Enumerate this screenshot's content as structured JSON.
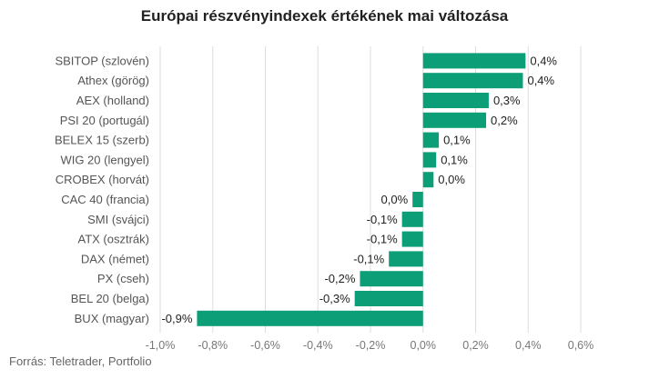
{
  "chart_data": {
    "type": "bar",
    "orientation": "horizontal",
    "title": "Európai részvényindexek értékének mai változása",
    "categories": [
      "SBITOP (szlovén)",
      "Athex (görög)",
      "AEX (holland)",
      "PSI 20 (portugál)",
      "BELEX 15 (szerb)",
      "WIG 20 (lengyel)",
      "CROBEX (horvát)",
      "CAC 40 (francia)",
      "SMI (svájci)",
      "ATX (osztrák)",
      "DAX (német)",
      "PX (cseh)",
      "BEL 20 (belga)",
      "BUX (magyar)"
    ],
    "values": [
      0.39,
      0.38,
      0.25,
      0.24,
      0.06,
      0.05,
      0.04,
      -0.04,
      -0.08,
      -0.08,
      -0.13,
      -0.24,
      -0.26,
      -0.86
    ],
    "value_labels": [
      "0,4%",
      "0,4%",
      "0,3%",
      "0,2%",
      "0,1%",
      "0,1%",
      "0,0%",
      "0,0%",
      "-0,1%",
      "-0,1%",
      "-0,1%",
      "-0,2%",
      "-0,3%",
      "-0,9%"
    ],
    "xlim": [
      -1.0,
      0.6
    ],
    "xticks": [
      -1.0,
      -0.8,
      -0.6,
      -0.4,
      -0.2,
      0.0,
      0.2,
      0.4,
      0.6
    ],
    "xtick_labels": [
      "-1,0%",
      "-0,8%",
      "-0,6%",
      "-0,4%",
      "-0,2%",
      "0,0%",
      "0,2%",
      "0,4%",
      "0,6%"
    ],
    "grid": true,
    "bar_color": "#0b9e77",
    "source": "Forrás: Teletrader, Portfolio"
  }
}
